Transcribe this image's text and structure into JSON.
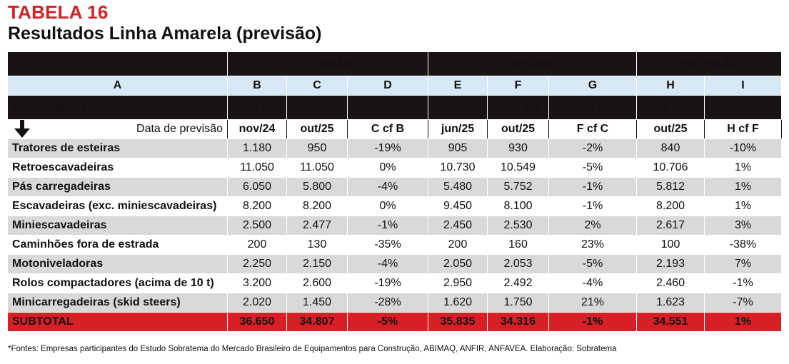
{
  "title": "TABELA 16",
  "subtitle": "Resultados Linha Amarela (previsão)",
  "group_headers": [
    "VENDAS",
    "VENDAS",
    "PREVISÃO"
  ],
  "letters": [
    "A",
    "B",
    "C",
    "D",
    "E",
    "F",
    "G",
    "H",
    "I"
  ],
  "column_headers": [
    "EQUIPAMENTO",
    "2024 est.",
    "2024 final",
    "Δ 2024 est. %",
    "2025 est.",
    "2025 est.",
    "2025/24 final %",
    "2026 prev.",
    "2026/2025 %"
  ],
  "date_row": [
    "Data de previsão",
    "nov/24",
    "out/25",
    "C cf B",
    "jun/25",
    "out/25",
    "F cf C",
    "out/25",
    "H cf F"
  ],
  "rows": [
    [
      "Tratores de esteiras",
      "1.180",
      "950",
      "-19%",
      "905",
      "930",
      "-2%",
      "840",
      "-10%"
    ],
    [
      "Retroescavadeiras",
      "11.050",
      "11.050",
      "0%",
      "10.730",
      "10.549",
      "-5%",
      "10.706",
      "1%"
    ],
    [
      "Pás carregadeiras",
      "6.050",
      "5.800",
      "-4%",
      "5.480",
      "5.752",
      "-1%",
      "5.812",
      "1%"
    ],
    [
      "Escavadeiras (exc. miniescavadeiras)",
      "8.200",
      "8.200",
      "0%",
      "9.450",
      "8.100",
      "-1%",
      "8.200",
      "1%"
    ],
    [
      "Miniescavadeiras",
      "2.500",
      "2.477",
      "-1%",
      "2.450",
      "2.530",
      "2%",
      "2.617",
      "3%"
    ],
    [
      "Caminhões fora de estrada",
      "200",
      "130",
      "-35%",
      "200",
      "160",
      "23%",
      "100",
      "-38%"
    ],
    [
      "Motoniveladoras",
      "2.250",
      "2.150",
      "-4%",
      "2.050",
      "2.053",
      "-5%",
      "2.193",
      "7%"
    ],
    [
      "Rolos compactadores (acima de 10 t)",
      "3.200",
      "2.600",
      "-19%",
      "2.950",
      "2.492",
      "-4%",
      "2.460",
      "-1%"
    ],
    [
      "Minicarregadeiras (skid steers)",
      "2.020",
      "1.450",
      "-28%",
      "1.620",
      "1.750",
      "21%",
      "1.623",
      "-7%"
    ]
  ],
  "subtotal": [
    "SUBTOTAL",
    "36.650",
    "34.807",
    "-5%",
    "35.835",
    "34.316",
    "-1%",
    "34.551",
    "1%"
  ],
  "footnote": "*Fontes: Empresas participantes do Estudo Sobratema do Mercado Brasileiro de Equipamentos para Construção, ABIMAQ, ANFIR, ANFAVEA. Elaboração: Sobratema",
  "colors": {
    "title_red": "#d81f26",
    "header_dark": "#1a1313",
    "letter_row": "#d7e9f5",
    "stripe": "#d9d9d9",
    "subtotal": "#d81f26"
  },
  "icons": [
    "down-arrow-icon"
  ]
}
